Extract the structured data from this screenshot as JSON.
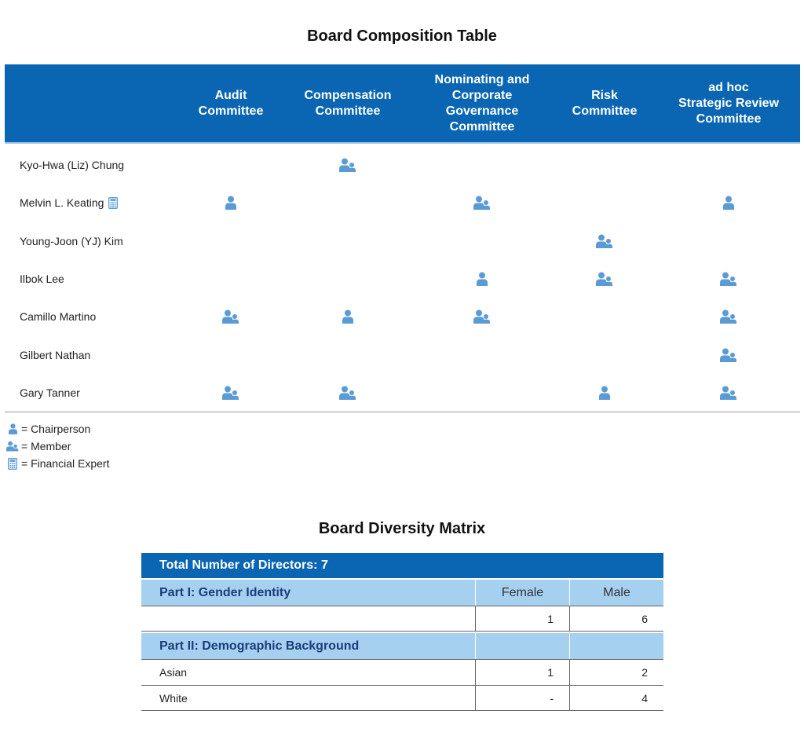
{
  "composition": {
    "title": "Board Composition Table",
    "columns": [
      {
        "key": "audit",
        "label": "Audit\nCommittee"
      },
      {
        "key": "compensation",
        "label": "Compensation\nCommittee"
      },
      {
        "key": "nominating",
        "label": "Nominating and\nCorporate\nGovernance\nCommittee"
      },
      {
        "key": "risk",
        "label": "Risk\nCommittee"
      },
      {
        "key": "adhoc",
        "label": "ad hoc\nStrategic Review\nCommittee"
      }
    ],
    "rows": [
      {
        "name": "Kyo-Hwa (Liz) Chung",
        "financial_expert": false,
        "roles": [
          "",
          "member",
          "",
          "",
          ""
        ]
      },
      {
        "name": "Melvin L. Keating",
        "financial_expert": true,
        "roles": [
          "chair",
          "",
          "member",
          "",
          "chair"
        ]
      },
      {
        "name": "Young-Joon (YJ) Kim",
        "financial_expert": false,
        "roles": [
          "",
          "",
          "",
          "member",
          ""
        ]
      },
      {
        "name": "Ilbok Lee",
        "financial_expert": false,
        "roles": [
          "",
          "",
          "chair",
          "member",
          "member"
        ]
      },
      {
        "name": "Camillo Martino",
        "financial_expert": false,
        "roles": [
          "member",
          "chair",
          "member",
          "",
          "member"
        ]
      },
      {
        "name": "Gilbert Nathan",
        "financial_expert": false,
        "roles": [
          "",
          "",
          "",
          "",
          "member"
        ]
      },
      {
        "name": "Gary Tanner",
        "financial_expert": false,
        "roles": [
          "member",
          "member",
          "",
          "chair",
          "member"
        ]
      }
    ],
    "legend": [
      {
        "icon": "chair",
        "label": "= Chairperson"
      },
      {
        "icon": "member",
        "label": "= Member"
      },
      {
        "icon": "calculator",
        "label": "= Financial Expert"
      }
    ],
    "icon_color": "#5b9bd5"
  },
  "diversity": {
    "title": "Board Diversity Matrix",
    "total": "Total Number of Directors: 7",
    "part1": {
      "label": "Part I: Gender Identity",
      "col1": "Female",
      "col2": "Male"
    },
    "part1_rows": [
      {
        "label": "",
        "v1": "1",
        "v2": "6"
      }
    ],
    "part2": {
      "label": "Part II: Demographic Background",
      "col1": "",
      "col2": ""
    },
    "part2_rows": [
      {
        "label": "Asian",
        "v1": "1",
        "v2": "2"
      },
      {
        "label": "White",
        "v1": "-",
        "v2": "4"
      }
    ]
  }
}
